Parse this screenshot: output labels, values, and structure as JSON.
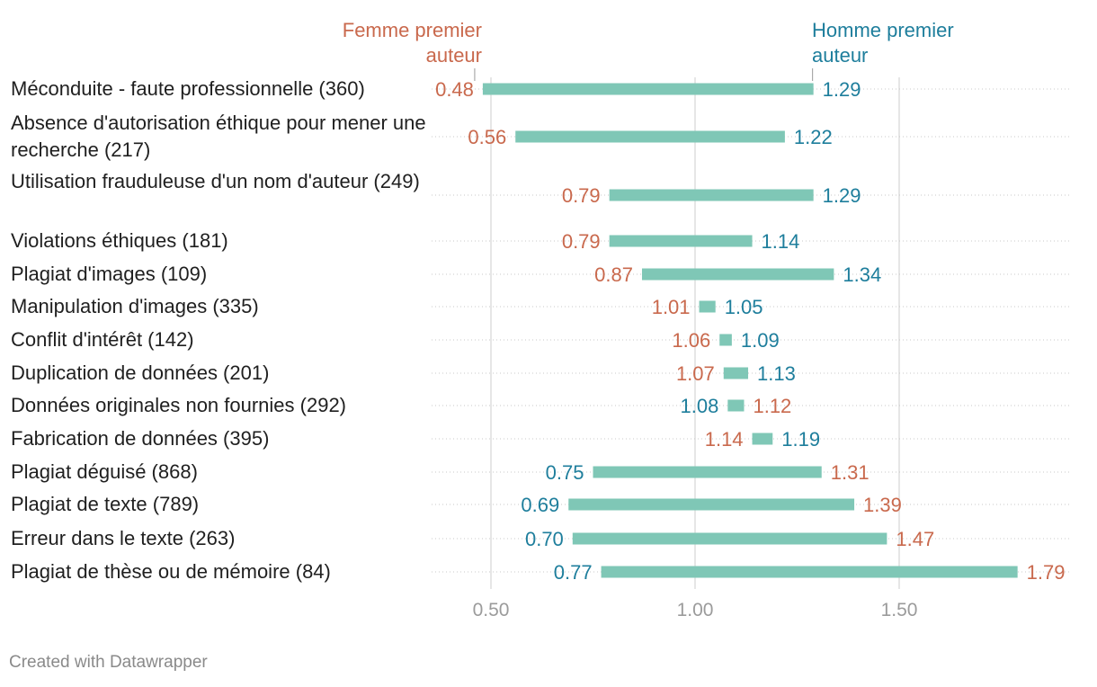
{
  "chart_data": {
    "type": "range-bar",
    "legend": {
      "female": "Femme premier auteur",
      "male": "Homme premier auteur"
    },
    "colors": {
      "female": "#c9694d",
      "male": "#1e7e9c",
      "bar": "#7fc7b6",
      "grid": "#d6d6d6",
      "tick": "#9b9b9b"
    },
    "xlim": [
      0.2,
      1.9
    ],
    "xticks": [
      {
        "value": 0.5,
        "label": "0.50"
      },
      {
        "value": 1.0,
        "label": "1.00"
      },
      {
        "value": 1.5,
        "label": "1.50"
      }
    ],
    "categories": [
      {
        "label": "Méconduite - faute professionnelle (360)",
        "female": 0.48,
        "male": 1.29,
        "female_label": "0.48",
        "male_label": "1.29"
      },
      {
        "label": "Absence d'autorisation éthique pour mener une recherche (217)",
        "female": 0.56,
        "male": 1.22,
        "female_label": "0.56",
        "male_label": "1.22"
      },
      {
        "label": "Utilisation frauduleuse d'un nom d'auteur (249)",
        "female": 0.79,
        "male": 1.29,
        "female_label": "0.79",
        "male_label": "1.29"
      },
      {
        "label": "Violations éthiques (181)",
        "female": 0.79,
        "male": 1.14,
        "female_label": "0.79",
        "male_label": "1.14"
      },
      {
        "label": "Plagiat d'images (109)",
        "female": 0.87,
        "male": 1.34,
        "female_label": "0.87",
        "male_label": "1.34"
      },
      {
        "label": "Manipulation d'images (335)",
        "female": 1.01,
        "male": 1.05,
        "female_label": "1.01",
        "male_label": "1.05"
      },
      {
        "label": "Conflit d'intérêt (142)",
        "female": 1.06,
        "male": 1.09,
        "female_label": "1.06",
        "male_label": "1.09"
      },
      {
        "label": "Duplication de données (201)",
        "female": 1.07,
        "male": 1.13,
        "female_label": "1.07",
        "male_label": "1.13"
      },
      {
        "label": "Données originales non fournies (292)",
        "female": 1.12,
        "male": 1.08,
        "female_label": "1.12",
        "male_label": "1.08"
      },
      {
        "label": "Fabrication de données (395)",
        "female": 1.14,
        "male": 1.19,
        "female_label": "1.14",
        "male_label": "1.19"
      },
      {
        "label": "Plagiat déguisé (868)",
        "female": 1.31,
        "male": 0.75,
        "female_label": "1.31",
        "male_label": "0.75"
      },
      {
        "label": "Plagiat de texte (789)",
        "female": 1.39,
        "male": 0.69,
        "female_label": "1.39",
        "male_label": "0.69"
      },
      {
        "label": "Erreur dans le texte (263)",
        "female": 1.47,
        "male": 0.7,
        "female_label": "1.47",
        "male_label": "0.70"
      },
      {
        "label": "Plagiat de thèse ou de mémoire (84)",
        "female": 1.79,
        "male": 0.77,
        "female_label": "1.79",
        "male_label": "0.77"
      }
    ]
  },
  "footer": "Created with Datawrapper"
}
